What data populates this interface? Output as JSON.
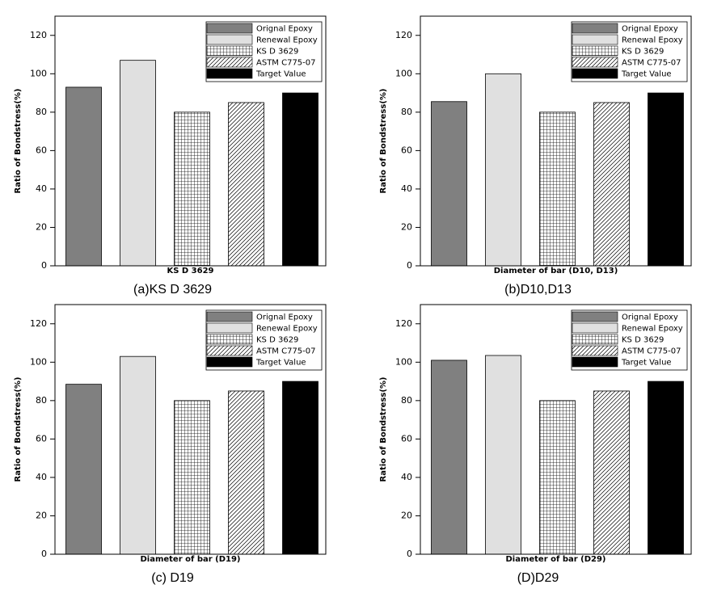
{
  "chart_data": [
    {
      "type": "bar",
      "caption": "(a)KS D 3629",
      "xlabel": "KS D 3629",
      "ylabel": "Ratio of Bondstress(%)",
      "categories": [
        null
      ],
      "series": [
        {
          "name": "Orignal Epoxy",
          "color": "#808080",
          "values": [
            93
          ]
        },
        {
          "name": "Renewal Epoxy",
          "color": "#e0e0e0",
          "values": [
            107
          ]
        },
        {
          "name": "KS D 3629",
          "color": "#ffffff",
          "hatch": "grid",
          "values": [
            80
          ]
        },
        {
          "name": "ASTM C775-07",
          "color": "#ffffff",
          "hatch": "diagonal",
          "values": [
            85
          ]
        },
        {
          "name": "Target Value",
          "color": "#000000",
          "values": [
            90
          ]
        }
      ],
      "ylim": [
        0,
        130
      ],
      "yticks": [
        0,
        20,
        40,
        60,
        80,
        100,
        120
      ],
      "grid": false,
      "legend": "upper right"
    },
    {
      "type": "bar",
      "caption": "(b)D10,D13",
      "xlabel": "Diameter of bar (D10, D13)",
      "ylabel": "Ratio of Bondstress(%)",
      "categories": [
        null
      ],
      "series": [
        {
          "name": "Orignal Epoxy",
          "color": "#808080",
          "values": [
            85.5
          ]
        },
        {
          "name": "Renewal Epoxy",
          "color": "#e0e0e0",
          "values": [
            100
          ]
        },
        {
          "name": "KS D 3629",
          "color": "#ffffff",
          "hatch": "grid",
          "values": [
            80
          ]
        },
        {
          "name": "ASTM C775-07",
          "color": "#ffffff",
          "hatch": "diagonal",
          "values": [
            85
          ]
        },
        {
          "name": "Target Value",
          "color": "#000000",
          "values": [
            90
          ]
        }
      ],
      "ylim": [
        0,
        130
      ],
      "yticks": [
        0,
        20,
        40,
        60,
        80,
        100,
        120
      ],
      "grid": false,
      "legend": "upper right"
    },
    {
      "type": "bar",
      "caption": "(c) D19",
      "xlabel": "Diameter of bar (D19)",
      "ylabel": "Ratio of Bondstress(%)",
      "categories": [
        null
      ],
      "series": [
        {
          "name": "Orignal Epoxy",
          "color": "#808080",
          "values": [
            88.5
          ]
        },
        {
          "name": "Renewal Epoxy",
          "color": "#e0e0e0",
          "values": [
            103
          ]
        },
        {
          "name": "KS D 3629",
          "color": "#ffffff",
          "hatch": "grid",
          "values": [
            80
          ]
        },
        {
          "name": "ASTM C775-07",
          "color": "#ffffff",
          "hatch": "diagonal",
          "values": [
            85
          ]
        },
        {
          "name": "Target Value",
          "color": "#000000",
          "values": [
            90
          ]
        }
      ],
      "ylim": [
        0,
        130
      ],
      "yticks": [
        0,
        20,
        40,
        60,
        80,
        100,
        120
      ],
      "grid": false,
      "legend": "upper right"
    },
    {
      "type": "bar",
      "caption": "(D)D29",
      "xlabel": "Diameter of bar (D29)",
      "ylabel": "Ratio of Bondstress(%)",
      "categories": [
        null
      ],
      "series": [
        {
          "name": "Orignal Epoxy",
          "color": "#808080",
          "values": [
            101
          ]
        },
        {
          "name": "Renewal Epoxy",
          "color": "#e0e0e0",
          "values": [
            103.5
          ]
        },
        {
          "name": "KS D 3629",
          "color": "#ffffff",
          "hatch": "grid",
          "values": [
            80
          ]
        },
        {
          "name": "ASTM C775-07",
          "color": "#ffffff",
          "hatch": "diagonal",
          "values": [
            85
          ]
        },
        {
          "name": "Target Value",
          "color": "#000000",
          "values": [
            90
          ]
        }
      ],
      "ylim": [
        0,
        130
      ],
      "yticks": [
        0,
        20,
        40,
        60,
        80,
        100,
        120
      ],
      "grid": false,
      "legend": "upper right"
    }
  ]
}
